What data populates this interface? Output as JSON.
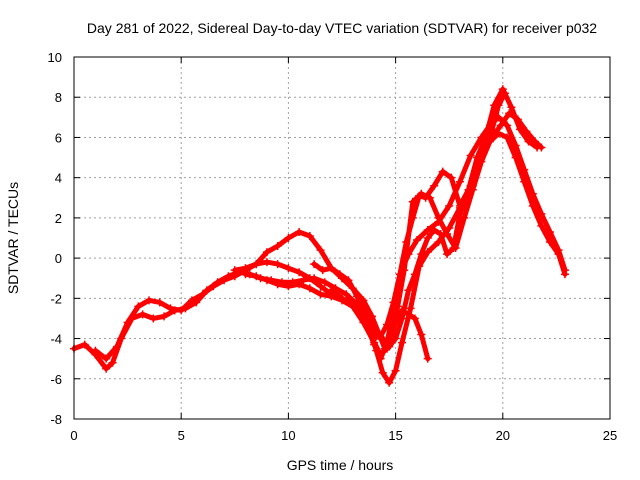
{
  "chart_data": {
    "type": "scatter",
    "title": "Day 281 of 2022, Sidereal Day-to-day VTEC variation (SDTVAR) for receiver p032",
    "xlabel": "GPS time / hours",
    "ylabel": "SDTVAR / TECUs",
    "xlim": [
      0,
      25
    ],
    "ylim": [
      -8,
      10
    ],
    "x_ticks": [
      "0",
      "5",
      "10",
      "15",
      "20",
      "25"
    ],
    "y_ticks": [
      "-8",
      "-6",
      "-4",
      "-2",
      "0",
      "2",
      "4",
      "6",
      "8",
      "10"
    ],
    "grid": true,
    "marker": "+",
    "color": "#ff0000",
    "series": [
      {
        "x": [
          0.0,
          0.5,
          1.0,
          1.5,
          1.8,
          2.2,
          2.7,
          3.2,
          3.7,
          4.2,
          4.7,
          5.2,
          5.7,
          6.2,
          6.7,
          7.2,
          7.7,
          8.2,
          8.7,
          9.2,
          9.7,
          10.2,
          10.7,
          11.2,
          11.7,
          12.2,
          12.7,
          13.2,
          13.6,
          14.0,
          14.3,
          14.6,
          14.9,
          15.2,
          15.6,
          16.0,
          16.5,
          17.0,
          17.5,
          18.0,
          18.5,
          19.0,
          19.4,
          19.8,
          20.2,
          20.6,
          21.0,
          21.4,
          21.8,
          22.2,
          22.6,
          22.9
        ],
        "y": [
          -4.5,
          -4.3,
          -4.8,
          -5.5,
          -5.2,
          -4.0,
          -3.0,
          -2.8,
          -3.0,
          -2.9,
          -2.6,
          -2.5,
          -2.2,
          -1.6,
          -1.2,
          -0.9,
          -0.7,
          -0.8,
          -1.0,
          -1.1,
          -1.2,
          -1.2,
          -1.1,
          -1.0,
          -1.2,
          -1.5,
          -1.8,
          -2.3,
          -3.2,
          -4.3,
          -5.0,
          -4.2,
          -2.6,
          -0.8,
          0.2,
          0.9,
          1.4,
          1.8,
          2.6,
          3.8,
          5.1,
          6.0,
          6.6,
          7.0,
          6.6,
          5.6,
          4.4,
          3.2,
          2.2,
          1.3,
          0.4,
          -0.6
        ]
      },
      {
        "x": [
          1.0,
          1.5,
          2.0,
          2.5,
          3.0,
          3.5,
          4.0,
          4.5,
          5.0,
          5.5,
          6.0,
          6.5,
          7.0,
          7.5,
          8.0,
          8.5,
          9.0,
          9.5,
          10.0,
          10.5,
          11.0,
          11.5,
          12.0,
          12.5,
          13.0,
          13.5,
          13.8,
          14.1,
          14.4,
          14.7,
          15.0,
          15.3,
          15.7,
          16.1,
          16.5,
          17.0,
          17.5,
          18.0,
          18.5,
          19.0,
          19.5,
          19.9,
          20.3,
          20.7,
          21.1,
          21.5,
          21.8
        ],
        "y": [
          -4.6,
          -5.0,
          -4.4,
          -3.2,
          -2.4,
          -2.1,
          -2.2,
          -2.5,
          -2.6,
          -2.1,
          -1.8,
          -1.4,
          -1.1,
          -0.9,
          -0.6,
          -0.3,
          -0.2,
          -0.3,
          -0.5,
          -0.7,
          -1.0,
          -1.4,
          -1.8,
          -2.0,
          -2.3,
          -2.8,
          -3.5,
          -4.6,
          -5.7,
          -6.2,
          -5.6,
          -4.2,
          -2.5,
          -0.4,
          0.3,
          0.8,
          1.5,
          2.5,
          3.6,
          5.0,
          6.0,
          6.6,
          7.2,
          6.9,
          6.3,
          5.8,
          5.5
        ]
      },
      {
        "x": [
          7.5,
          8.0,
          8.5,
          9.0,
          9.5,
          10.0,
          10.5,
          11.0,
          11.5,
          12.0,
          12.5,
          13.0,
          13.5,
          13.9,
          14.2,
          14.5,
          14.8,
          15.1,
          15.4,
          15.8,
          16.2,
          16.6,
          17.0,
          17.4,
          17.8,
          18.2,
          18.6,
          19.0,
          19.4,
          19.8,
          20.2,
          20.6,
          21.0,
          21.4,
          21.8,
          22.2,
          22.6,
          22.9
        ],
        "y": [
          -0.6,
          -0.5,
          -0.3,
          0.3,
          0.6,
          1.0,
          1.3,
          1.1,
          0.4,
          -0.5,
          -1.0,
          -1.5,
          -2.1,
          -2.9,
          -3.7,
          -4.5,
          -4.0,
          -2.4,
          -0.6,
          2.8,
          3.2,
          3.0,
          2.0,
          1.2,
          0.5,
          2.0,
          3.4,
          4.8,
          5.8,
          6.2,
          6.0,
          5.0,
          3.8,
          2.6,
          1.6,
          0.8,
          0.2,
          -0.8
        ]
      },
      {
        "x": [
          12.0,
          12.5,
          13.0,
          13.4,
          13.8,
          14.1,
          14.4,
          14.7,
          15.0,
          15.3,
          15.6,
          15.9,
          16.2,
          16.5,
          16.8,
          17.1,
          17.4,
          17.7,
          18.0,
          18.3,
          18.6,
          18.9,
          19.2,
          19.5,
          19.8,
          20.1
        ],
        "y": [
          -1.6,
          -2.0,
          -2.4,
          -2.8,
          -3.4,
          -3.9,
          -4.0,
          -4.4,
          -4.0,
          -3.0,
          -1.6,
          -0.8,
          0.2,
          1.0,
          1.4,
          1.2,
          0.2,
          0.5,
          2.2,
          3.0,
          3.6,
          4.8,
          5.6,
          6.4,
          7.6,
          8.2
        ]
      },
      {
        "x": [
          11.2,
          11.6,
          12.0,
          12.4,
          12.8,
          13.2,
          13.6,
          14.0,
          14.3,
          14.6,
          14.9,
          15.2,
          15.5,
          15.8,
          16.1,
          16.4,
          16.8,
          17.2,
          17.6,
          18.0,
          18.4,
          18.8,
          19.2,
          19.6,
          20.0,
          20.4,
          20.8,
          21.2,
          21.6
        ],
        "y": [
          -0.3,
          -0.6,
          -0.5,
          -0.8,
          -1.1,
          -1.9,
          -2.8,
          -3.6,
          -3.9,
          -3.3,
          -2.2,
          -0.8,
          0.8,
          2.0,
          3.1,
          3.0,
          3.6,
          4.3,
          4.0,
          2.6,
          3.4,
          5.0,
          6.0,
          7.6,
          8.4,
          7.5,
          6.4,
          5.8,
          5.5
        ]
      },
      {
        "x": [
          8.0,
          8.5,
          9.0,
          9.5,
          10.0,
          10.5,
          11.0,
          11.5,
          12.0,
          12.5,
          13.0,
          13.5,
          14.0,
          14.3,
          14.6,
          15.0,
          15.3,
          15.6,
          15.9,
          16.2,
          16.5
        ],
        "y": [
          -0.8,
          -0.9,
          -1.1,
          -1.3,
          -1.4,
          -1.3,
          -1.5,
          -1.8,
          -1.9,
          -2.1,
          -2.4,
          -3.2,
          -4.2,
          -4.8,
          -4.5,
          -3.2,
          -2.6,
          -2.8,
          -3.0,
          -3.8,
          -5.0
        ]
      }
    ]
  }
}
